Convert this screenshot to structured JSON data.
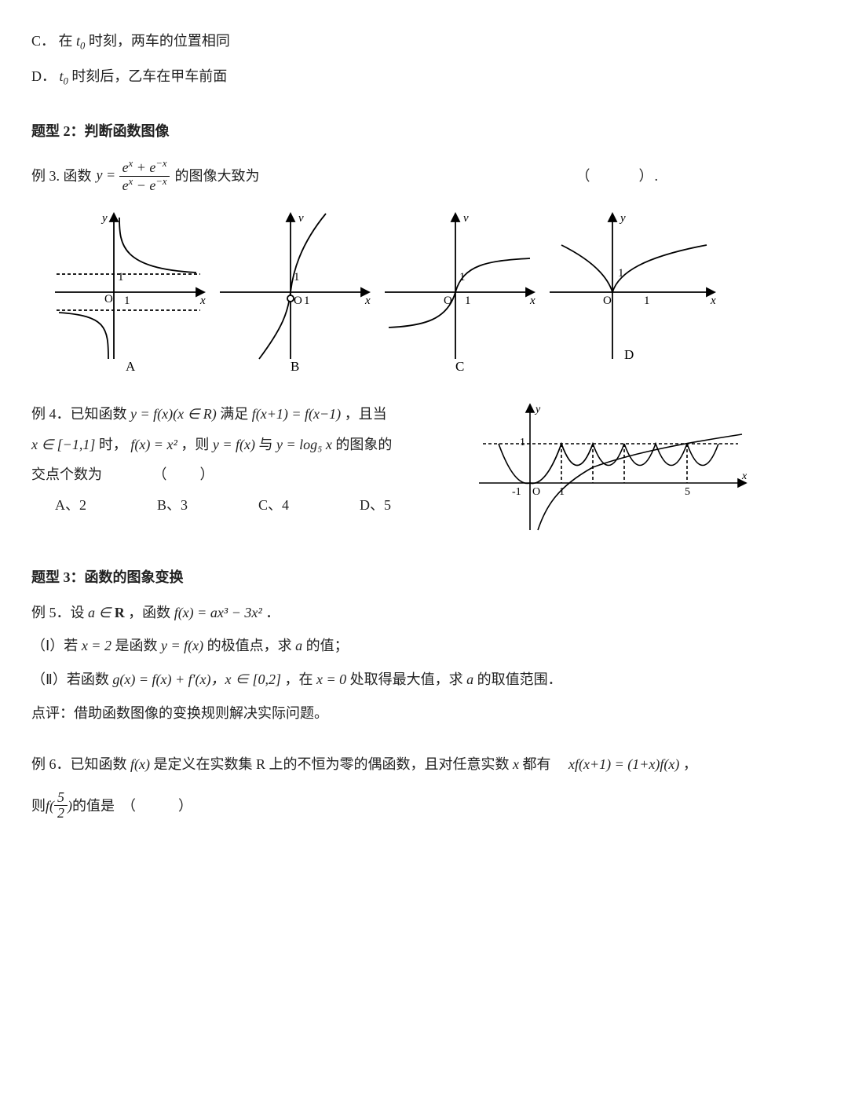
{
  "opt_c": {
    "label": "C．",
    "text_pre": "在",
    "t0_var": "t",
    "t0_sub": "0",
    "text_post": " 时刻，两车的位置相同"
  },
  "opt_d": {
    "label": "D．",
    "t0_var": "t",
    "t0_sub": "0",
    "text_post": " 时刻后，乙车在甲车前面"
  },
  "sec2": {
    "title": "题型 2：判断函数图像"
  },
  "ex3": {
    "prefix": "例 3. 函数 ",
    "y_eq": "y = ",
    "num": "e<sup>x</sup> + e<sup>−x</sup>",
    "den": "e<sup>x</sup> − e<sup>−x</sup>",
    "suffix": " 的图像大致为",
    "paren": "（　　　）.",
    "chart_labels": {
      "A": "A",
      "B": "B",
      "C": "C",
      "D": "D"
    },
    "axis": {
      "x": "x",
      "y": "y",
      "v": "v",
      "O": "O",
      "one": "1"
    }
  },
  "ex4": {
    "line1_a": "例 4．已知函数 ",
    "fx_def": "y = f(x)(x ∈ R)",
    "line1_b": " 满足 ",
    "cond": "f(x+1) = f(x−1)",
    "line1_c": "，且当",
    "line2_a_var": "x ∈ [−1,1]",
    "line2_a_txt": " 时，",
    "fx_sq": "f(x) = x²",
    "line2_b": "，则 ",
    "yfx": "y = f(x)",
    "and": " 与 ",
    "logx": "y = log₅ x",
    "line2_c": " 的图象的",
    "line3": "交点个数为",
    "paren": "（　　）",
    "options": {
      "A": "A、2",
      "B": "B、3",
      "C": "C、4",
      "D": "D、5"
    },
    "graph": {
      "neg1": "-1",
      "O": "O",
      "one": "1",
      "five": "5",
      "x": "x",
      "y": "y",
      "yone": "1"
    }
  },
  "sec3": {
    "title": "题型 3：函数的图象变换"
  },
  "ex5": {
    "line1_a": "例 5．设 ",
    "a_in_R": "a ∈ R",
    "line1_b": "，函数 ",
    "fx": "f(x) = ax³ − 3x²",
    "line1_c": "．",
    "p1_a": "（Ⅰ）若 ",
    "x2": "x = 2",
    "p1_b": " 是函数 ",
    "yfx": "y = f(x)",
    "p1_c": " 的极值点，求 ",
    "a": "a",
    "p1_d": " 的值；",
    "p2_a": "（Ⅱ）若函数 ",
    "gx": "g(x) = f(x) + f′(x)，x ∈ [0,2]",
    "p2_b": "，在 ",
    "x0": "x = 0",
    "p2_c": " 处取得最大值，求 ",
    "p2_d": " 的取值范围．",
    "comment": "点评：借助函数图像的变换规则解决实际问题。"
  },
  "ex6": {
    "line1_a": "例 6．已知函数 ",
    "fx": "f(x)",
    "line1_b": " 是定义在实数集 R 上的不恒为零的偶函数，且对任意实数 ",
    "xvar": "x",
    "line1_c": " 都有　",
    "eq": "xf(x+1) = (1+x)f(x)",
    "line1_d": "，",
    "line2_a": "则 ",
    "f52_num": "5",
    "f52_den": "2",
    "line2_b": " 的值是　（　　　）"
  },
  "style": {
    "stroke": "#000000",
    "stroke_width": 1.8,
    "dash": "4 3",
    "text_color": "#222222",
    "axis_font": 15
  }
}
